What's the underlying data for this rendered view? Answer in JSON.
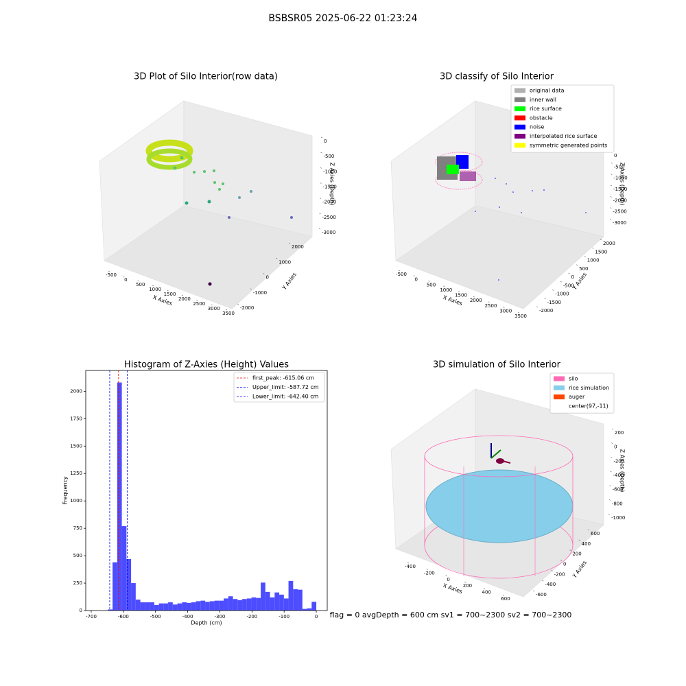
{
  "title": "BSBSR05 2025-06-22 01:23:24",
  "chart_data": [
    {
      "type": "scatter3d",
      "title": "3D Plot of Silo Interior(row data)",
      "xlabel": "X Axies",
      "ylabel": "Y Axies",
      "zlabel": "Z Axies (Depth)",
      "xlim": [
        -500,
        3500
      ],
      "xticks": [
        -500,
        0,
        500,
        1000,
        1500,
        2000,
        2500,
        3000,
        3500
      ],
      "ylim": [
        -2000,
        2000
      ],
      "yticks": [
        -2000,
        -1000,
        0,
        1000,
        2000
      ],
      "zlim": [
        -3000,
        0
      ],
      "zticks": [
        0,
        -500,
        -1000,
        -1500,
        -2000,
        -2500,
        -3000
      ]
    },
    {
      "type": "scatter3d",
      "title": "3D classify of Silo Interior",
      "xlabel": "X Axies",
      "ylabel": "Y Axies",
      "zlabel": "Z Axies (Depth)",
      "xlim": [
        -500,
        3500
      ],
      "xticks": [
        -500,
        0,
        500,
        1000,
        1500,
        2000,
        2500,
        3000,
        3500
      ],
      "ylim": [
        -2000,
        2000
      ],
      "yticks": [
        -2000,
        -1500,
        -1000,
        -500,
        0,
        500,
        1000,
        1500,
        2000
      ],
      "zlim": [
        -3000,
        0
      ],
      "zticks": [
        0,
        -500,
        -1000,
        -1500,
        -2000,
        -2500,
        -3000
      ],
      "legend": {
        "position": "upper right",
        "entries": [
          {
            "name": "original data",
            "color": "#b0b0b0"
          },
          {
            "name": "inner wall",
            "color": "#808080"
          },
          {
            "name": "rice surface",
            "color": "#00ff00"
          },
          {
            "name": "obstacle",
            "color": "#ff0000"
          },
          {
            "name": "noise",
            "color": "#0000ff"
          },
          {
            "name": "interpolated rice surface",
            "color": "#800080"
          },
          {
            "name": "symmetric generated points",
            "color": "#ffff00"
          }
        ]
      }
    },
    {
      "type": "histogram",
      "title": "Histogram of Z-Axies (Height) Values",
      "xlabel": "Depth (cm)",
      "ylabel": "Frequency",
      "color": "#4d4dff",
      "bins": [
        -648,
        -633.6,
        -619.2,
        -604.8,
        -590.4,
        -576,
        -561.6,
        -547.2,
        -532.8,
        -518.4,
        -504,
        -489.6,
        -475.2,
        -460.8,
        -446.4,
        -432,
        -417.6,
        -403.2,
        -388.8,
        -374.4,
        -360,
        -345.6,
        -331.2,
        -316.8,
        -302.4,
        -288,
        -273.6,
        -259.2,
        -244.8,
        -230.4,
        -216,
        -201.6,
        -187.2,
        -172.8,
        -158.4,
        -144,
        -129.6,
        -115.2,
        -100.8,
        -86.4,
        -72,
        -57.6,
        -43.2,
        -28.8,
        -14.4,
        0
      ],
      "values": [
        10,
        440,
        2080,
        770,
        470,
        250,
        100,
        75,
        75,
        75,
        50,
        65,
        65,
        75,
        55,
        65,
        75,
        70,
        75,
        85,
        90,
        80,
        85,
        90,
        90,
        110,
        130,
        105,
        95,
        105,
        110,
        120,
        115,
        255,
        170,
        120,
        165,
        145,
        110,
        270,
        195,
        190,
        15,
        20,
        80
      ],
      "xlim": [
        -717,
        34
      ],
      "xticks": [
        -700,
        -600,
        -500,
        -400,
        -300,
        -200,
        -100,
        0
      ],
      "ylim": [
        0,
        2190
      ],
      "yticks": [
        0,
        250,
        500,
        750,
        1000,
        1250,
        1500,
        1750,
        2000
      ],
      "lines": [
        {
          "name": "first_peak: -615.06 cm",
          "value": -615.06,
          "color": "#ff0000"
        },
        {
          "name": "Upper_limit: -587.72 cm",
          "value": -587.72,
          "color": "#0000ff"
        },
        {
          "name": "Lower_limit: -642.40 cm",
          "value": -642.4,
          "color": "#0000ff"
        }
      ],
      "legend": {
        "position": "upper right"
      }
    },
    {
      "type": "surface3d",
      "title": "3D simulation of Silo Interior",
      "xlabel": "X Axies",
      "ylabel": "Y Axies",
      "zlabel": "Z Axies (Depth)",
      "xlim": [
        -400,
        600
      ],
      "xticks": [
        -400,
        -200,
        0,
        200,
        400,
        600
      ],
      "ylim": [
        -600,
        600
      ],
      "yticks": [
        -600,
        -400,
        -200,
        0,
        200,
        400,
        600
      ],
      "zlim": [
        -1000,
        200
      ],
      "zticks": [
        200,
        0,
        -200,
        -400,
        -600,
        -800,
        -1000
      ],
      "legend": {
        "position": "upper right",
        "entries": [
          {
            "name": "silo",
            "color": "#ff69b4"
          },
          {
            "name": "rice simulation",
            "color": "#87ceeb"
          },
          {
            "name": "auger",
            "color": "#ff4500"
          },
          {
            "name": "center(97,-11)",
            "color": "#ffffff"
          }
        ]
      }
    }
  ],
  "footer": "flag = 0     avgDepth = 600 cm  sv1 = 700~2300  sv2 = 700~2300"
}
